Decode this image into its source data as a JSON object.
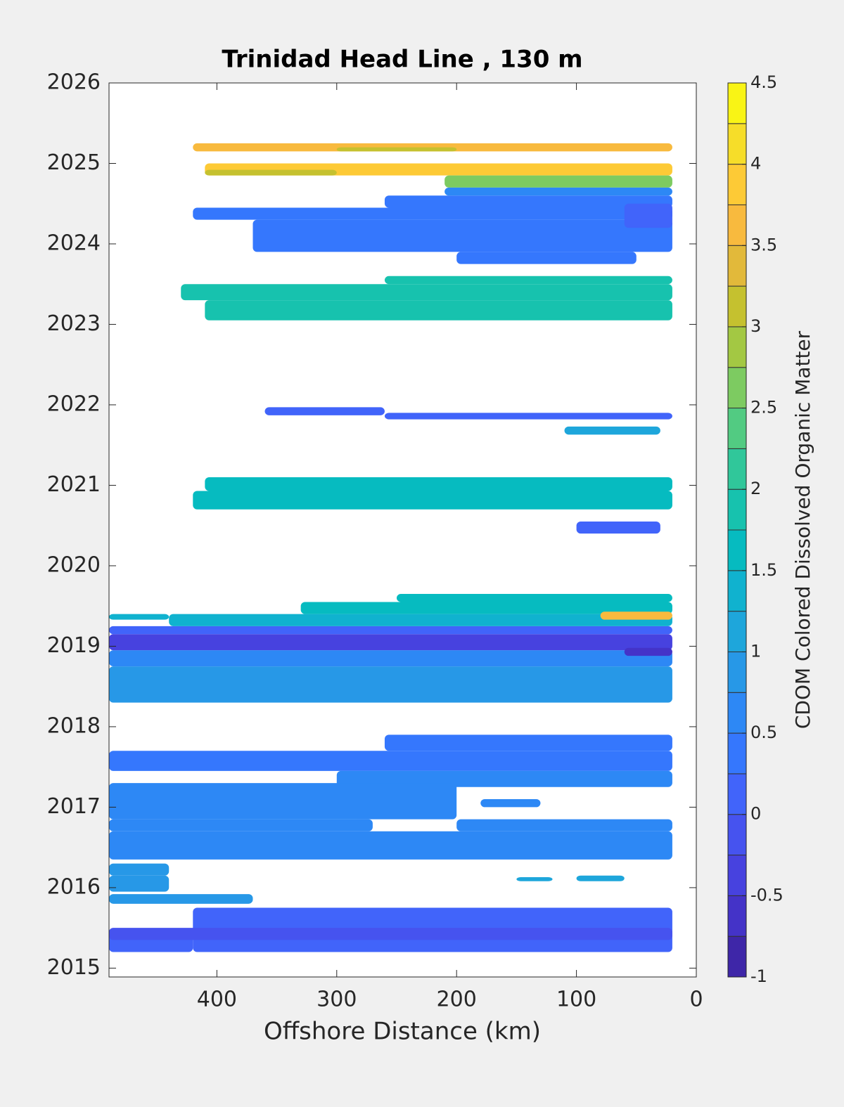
{
  "chart_data": {
    "type": "contour",
    "title": "Trinidad Head Line , 130 m",
    "x_label": "Offshore Distance (km)",
    "xlim": [
      490,
      0
    ],
    "xticks": [
      400,
      300,
      200,
      100,
      0
    ],
    "ylim": [
      2014.89,
      2026
    ],
    "yticks": [
      2015,
      2016,
      2017,
      2018,
      2019,
      2020,
      2021,
      2022,
      2023,
      2024,
      2025,
      2026
    ],
    "patches": [
      {
        "x": [
          420,
          20
        ],
        "y": [
          2025.15,
          2025.25
        ],
        "z": 3.7
      },
      {
        "x": [
          300,
          200
        ],
        "y": [
          2025.15,
          2025.2
        ],
        "z": 3.0
      },
      {
        "x": [
          410,
          20
        ],
        "y": [
          2024.85,
          2025.0
        ],
        "z": 3.8
      },
      {
        "x": [
          410,
          300
        ],
        "y": [
          2024.85,
          2024.92
        ],
        "z": 3.0
      },
      {
        "x": [
          210,
          20
        ],
        "y": [
          2024.7,
          2024.85
        ],
        "z": 2.5
      },
      {
        "x": [
          420,
          20
        ],
        "y": [
          2024.3,
          2024.45
        ],
        "z": 0.45
      },
      {
        "x": [
          370,
          20
        ],
        "y": [
          2023.9,
          2024.3
        ],
        "z": 0.45
      },
      {
        "x": [
          260,
          20
        ],
        "y": [
          2024.45,
          2024.6
        ],
        "z": 0.45
      },
      {
        "x": [
          210,
          20
        ],
        "y": [
          2024.6,
          2024.7
        ],
        "z": 0.7
      },
      {
        "x": [
          200,
          50
        ],
        "y": [
          2023.75,
          2023.9
        ],
        "z": 0.45
      },
      {
        "x": [
          60,
          20
        ],
        "y": [
          2024.2,
          2024.5
        ],
        "z": 0.2
      },
      {
        "x": [
          430,
          20
        ],
        "y": [
          2023.3,
          2023.5
        ],
        "z": 1.8
      },
      {
        "x": [
          410,
          20
        ],
        "y": [
          2023.05,
          2023.3
        ],
        "z": 1.8
      },
      {
        "x": [
          260,
          20
        ],
        "y": [
          2023.5,
          2023.6
        ],
        "z": 1.8
      },
      {
        "x": [
          360,
          260
        ],
        "y": [
          2021.87,
          2021.97
        ],
        "z": 0.05
      },
      {
        "x": [
          260,
          20
        ],
        "y": [
          2021.82,
          2021.9
        ],
        "z": 0.05
      },
      {
        "x": [
          110,
          30
        ],
        "y": [
          2021.63,
          2021.73
        ],
        "z": 1.2
      },
      {
        "x": [
          420,
          20
        ],
        "y": [
          2020.7,
          2020.93
        ],
        "z": 1.6
      },
      {
        "x": [
          410,
          20
        ],
        "y": [
          2020.93,
          2021.1
        ],
        "z": 1.6
      },
      {
        "x": [
          100,
          30
        ],
        "y": [
          2020.4,
          2020.55
        ],
        "z": 0.05
      },
      {
        "x": [
          490,
          20
        ],
        "y": [
          2018.3,
          2018.75
        ],
        "z": 0.8
      },
      {
        "x": [
          490,
          20
        ],
        "y": [
          2018.75,
          2018.95
        ],
        "z": 0.55
      },
      {
        "x": [
          490,
          20
        ],
        "y": [
          2018.95,
          2019.15
        ],
        "z": -0.35
      },
      {
        "x": [
          490,
          20
        ],
        "y": [
          2019.15,
          2019.25
        ],
        "z": 0.05
      },
      {
        "x": [
          440,
          20
        ],
        "y": [
          2019.25,
          2019.4
        ],
        "z": 1.3
      },
      {
        "x": [
          490,
          440
        ],
        "y": [
          2019.33,
          2019.4
        ],
        "z": 1.3
      },
      {
        "x": [
          330,
          20
        ],
        "y": [
          2019.4,
          2019.55
        ],
        "z": 1.5
      },
      {
        "x": [
          250,
          20
        ],
        "y": [
          2019.55,
          2019.65
        ],
        "z": 1.7
      },
      {
        "x": [
          80,
          20
        ],
        "y": [
          2019.33,
          2019.43
        ],
        "z": 3.6
      },
      {
        "x": [
          60,
          20
        ],
        "y": [
          2018.88,
          2018.98
        ],
        "z": -0.7
      },
      {
        "x": [
          490,
          20
        ],
        "y": [
          2017.45,
          2017.7
        ],
        "z": 0.25
      },
      {
        "x": [
          260,
          20
        ],
        "y": [
          2017.7,
          2017.9
        ],
        "z": 0.35
      },
      {
        "x": [
          300,
          20
        ],
        "y": [
          2017.25,
          2017.45
        ],
        "z": 0.5
      },
      {
        "x": [
          490,
          200
        ],
        "y": [
          2016.85,
          2017.3
        ],
        "z": 0.7
      },
      {
        "x": [
          180,
          130
        ],
        "y": [
          2017.0,
          2017.1
        ],
        "z": 0.7
      },
      {
        "x": [
          490,
          20
        ],
        "y": [
          2016.35,
          2016.7
        ],
        "z": 0.6
      },
      {
        "x": [
          490,
          270
        ],
        "y": [
          2016.7,
          2016.85
        ],
        "z": 0.6
      },
      {
        "x": [
          200,
          20
        ],
        "y": [
          2016.7,
          2016.85
        ],
        "z": 0.6
      },
      {
        "x": [
          490,
          440
        ],
        "y": [
          2016.15,
          2016.3
        ],
        "z": 0.9
      },
      {
        "x": [
          490,
          440
        ],
        "y": [
          2015.95,
          2016.15
        ],
        "z": 0.9
      },
      {
        "x": [
          490,
          370
        ],
        "y": [
          2015.8,
          2015.92
        ],
        "z": 0.9
      },
      {
        "x": [
          420,
          20
        ],
        "y": [
          2015.2,
          2015.75
        ],
        "z": 0.1
      },
      {
        "x": [
          490,
          420
        ],
        "y": [
          2015.2,
          2015.45
        ],
        "z": 0.1
      },
      {
        "x": [
          490,
          20
        ],
        "y": [
          2015.35,
          2015.5
        ],
        "z": -0.1
      },
      {
        "x": [
          150,
          120
        ],
        "y": [
          2016.08,
          2016.13
        ],
        "z": 1.2
      },
      {
        "x": [
          100,
          60
        ],
        "y": [
          2016.08,
          2016.15
        ],
        "z": 1.2
      }
    ],
    "colorbar": {
      "label": "CDOM Colored Dissolved Organic Matter",
      "lim": [
        -1,
        4.5
      ],
      "ticks": [
        -1,
        -0.5,
        0,
        0.5,
        1,
        1.5,
        2,
        2.5,
        3,
        3.5,
        4,
        4.5
      ],
      "levels": [
        -1,
        -0.75,
        -0.5,
        -0.25,
        0,
        0.25,
        0.5,
        0.75,
        1,
        1.25,
        1.5,
        1.75,
        2,
        2.25,
        2.5,
        2.75,
        3,
        3.25,
        3.5,
        3.75,
        4,
        4.25,
        4.5
      ],
      "colormap": [
        "#3e26a8",
        "#4433c8",
        "#4742df",
        "#4653ef",
        "#4164fa",
        "#3577fd",
        "#2d88f5",
        "#2798e7",
        "#1ea6db",
        "#10b2cf",
        "#06bbc0",
        "#17c2ae",
        "#30c79a",
        "#52cb82",
        "#7dcb61",
        "#a3c843",
        "#c5c12f",
        "#e2b93a",
        "#f8ba3e",
        "#fdca36",
        "#f6dd29",
        "#f9f415"
      ]
    }
  }
}
